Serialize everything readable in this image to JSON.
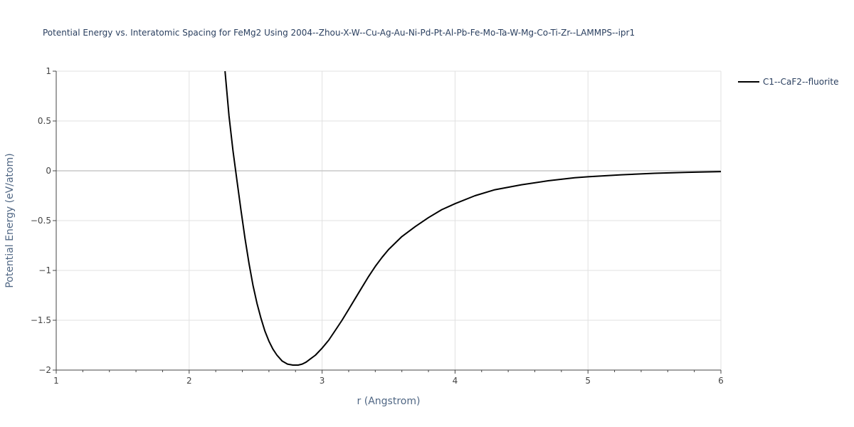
{
  "chart_data": {
    "type": "line",
    "title": "Potential Energy vs. Interatomic Spacing for FeMg2 Using 2004--Zhou-X-W--Cu-Ag-Au-Ni-Pd-Pt-Al-Pb-Fe-Mo-Ta-W-Mg-Co-Ti-Zr--LAMMPS--ipr1",
    "xlabel": "r (Angstrom)",
    "ylabel": "Potential Energy (eV/atom)",
    "xlim": [
      1,
      6
    ],
    "ylim": [
      -2,
      1
    ],
    "x_ticks": [
      1,
      2,
      3,
      4,
      5,
      6
    ],
    "x_tick_labels": [
      "1",
      "2",
      "3",
      "4",
      "5",
      "6"
    ],
    "x_minor_ticks": [
      1.2,
      1.4,
      1.6,
      1.8,
      2.2,
      2.4,
      2.6,
      2.8,
      3.2,
      3.4,
      3.6,
      3.8,
      4.2,
      4.4,
      4.6,
      4.8,
      5.2,
      5.4,
      5.6,
      5.8
    ],
    "y_ticks": [
      1,
      0.5,
      0,
      -0.5,
      -1,
      -1.5,
      -2
    ],
    "y_tick_labels": [
      "1",
      "0.5",
      "0",
      "−0.5",
      "−1",
      "−1.5",
      "−2"
    ],
    "grid": true,
    "legend_position": "top-right",
    "series": [
      {
        "name": "C1--CaF2--fluorite",
        "color": "#000000",
        "x": [
          2.27,
          2.3,
          2.33,
          2.36,
          2.39,
          2.42,
          2.45,
          2.48,
          2.51,
          2.54,
          2.57,
          2.6,
          2.63,
          2.66,
          2.7,
          2.74,
          2.78,
          2.82,
          2.85,
          2.88,
          2.91,
          2.95,
          3.0,
          3.05,
          3.1,
          3.15,
          3.2,
          3.25,
          3.3,
          3.35,
          3.4,
          3.45,
          3.5,
          3.6,
          3.7,
          3.8,
          3.9,
          4.0,
          4.15,
          4.3,
          4.5,
          4.7,
          4.9,
          5.0,
          5.25,
          5.5,
          5.75,
          6.0
        ],
        "y": [
          1.0,
          0.55,
          0.2,
          -0.1,
          -0.4,
          -0.68,
          -0.93,
          -1.15,
          -1.33,
          -1.48,
          -1.61,
          -1.71,
          -1.79,
          -1.85,
          -1.91,
          -1.94,
          -1.95,
          -1.95,
          -1.94,
          -1.92,
          -1.89,
          -1.85,
          -1.78,
          -1.7,
          -1.6,
          -1.5,
          -1.39,
          -1.28,
          -1.17,
          -1.06,
          -0.96,
          -0.87,
          -0.79,
          -0.66,
          -0.56,
          -0.47,
          -0.39,
          -0.33,
          -0.25,
          -0.19,
          -0.14,
          -0.1,
          -0.07,
          -0.06,
          -0.04,
          -0.025,
          -0.015,
          -0.008
        ]
      }
    ]
  }
}
